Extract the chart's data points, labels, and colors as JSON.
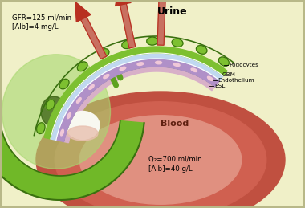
{
  "bg_color": "#f0f0c8",
  "title": "Urine",
  "blood_label": "Blood",
  "gfr_text": "GFR=125 ml/min\n[Alb]=4 mg/L",
  "qp_text": "Q₂=700 ml/min\n[Alb]=40 g/L",
  "labels_right": [
    "Podocytes",
    "GBM",
    "Endothelium",
    "ESL"
  ],
  "arrow_color": "#b83020",
  "arrow_shaft_color": "#c87060",
  "podocyte_fill": "#7dc030",
  "podocyte_dark": "#3a7010",
  "gbm_color": "#c0d8f0",
  "endothelium_color": "#b090c8",
  "esl_color": "#d8b0c8",
  "blood_dark": "#c05040",
  "blood_mid": "#d06050",
  "blood_light": "#e09080",
  "green_outer": "#70b828",
  "green_dark": "#3a7010",
  "green_inner_fill": "#a8d870",
  "green_cell_dark": "#386010",
  "white_space": "#f8f8f0",
  "pink_skin": "#e8c0b0",
  "fenestration_color": "#f0c8d8"
}
